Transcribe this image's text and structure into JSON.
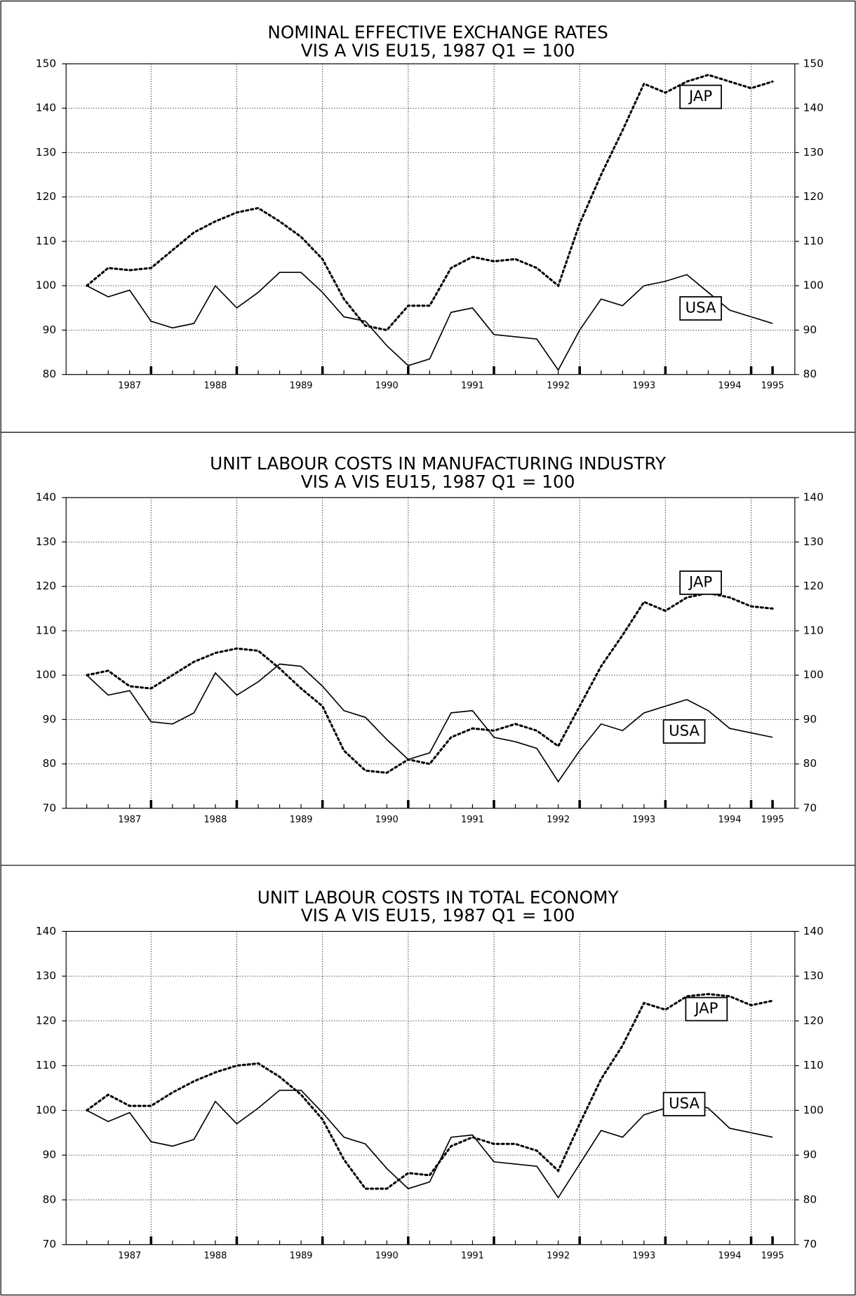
{
  "chart_data": [
    {
      "type": "line",
      "title": "NOMINAL EFFECTIVE EXCHANGE RATES",
      "subtitle": "VIS A VIS EU15,  1987 Q1 = 100",
      "categories": [
        null,
        null,
        "1987",
        null,
        null,
        null,
        "1988",
        null,
        null,
        null,
        "1989",
        null,
        null,
        null,
        "1990",
        null,
        null,
        null,
        "1991",
        null,
        null,
        null,
        "1992",
        null,
        null,
        null,
        "1993",
        null,
        null,
        null,
        "1994",
        null,
        "1995"
      ],
      "series": [
        {
          "name": "JAP",
          "color": "#000",
          "dash": "dotted",
          "values": [
            100,
            104,
            103.5,
            104,
            108,
            112,
            114.5,
            116.5,
            117.5,
            114.5,
            111,
            106,
            97,
            91,
            90,
            95.5,
            95.5,
            104,
            106.5,
            105.5,
            106,
            104,
            100,
            114,
            125,
            135,
            145.5,
            143.5,
            146,
            147.5,
            146,
            144.5,
            146
          ]
        },
        {
          "name": "USA",
          "color": "#000",
          "dash": "solid",
          "values": [
            100,
            97.5,
            99,
            92,
            90.5,
            91.5,
            100,
            95,
            98.5,
            103,
            103,
            98.5,
            93,
            92,
            86.5,
            82,
            83.5,
            94,
            95,
            89,
            88.5,
            88,
            81,
            90,
            97,
            95.5,
            100,
            101,
            102.5,
            98.5,
            94.5,
            93,
            91.5
          ]
        }
      ],
      "ylim": [
        80,
        150
      ],
      "yticks": [
        80,
        90,
        100,
        110,
        120,
        130,
        140,
        150
      ],
      "y2lim": [
        80,
        150
      ],
      "y2ticks": [
        80,
        90,
        100,
        110,
        120,
        130,
        140,
        150
      ],
      "grid": true
    },
    {
      "type": "line",
      "title": "UNIT LABOUR COSTS IN MANUFACTURING INDUSTRY",
      "subtitle": "VIS A VIS EU15,  1987 Q1 = 100",
      "categories": [
        null,
        null,
        "1987",
        null,
        null,
        null,
        "1988",
        null,
        null,
        null,
        "1989",
        null,
        null,
        null,
        "1990",
        null,
        null,
        null,
        "1991",
        null,
        null,
        null,
        "1992",
        null,
        null,
        null,
        "1993",
        null,
        null,
        null,
        "1994",
        null,
        "1995"
      ],
      "series": [
        {
          "name": "JAP",
          "color": "#000",
          "dash": "dotted",
          "values": [
            100,
            101,
            97.5,
            97,
            100,
            103,
            105,
            106,
            105.5,
            101.5,
            97,
            93,
            83,
            78.5,
            78,
            81,
            80,
            86,
            88,
            87.5,
            89,
            87.5,
            84,
            93,
            102,
            109,
            116.5,
            114.5,
            117.5,
            118.5,
            117.5,
            115.5,
            115
          ]
        },
        {
          "name": "USA",
          "color": "#000",
          "dash": "solid",
          "values": [
            100,
            95.5,
            96.5,
            89.5,
            89,
            91.5,
            100.5,
            95.5,
            98.5,
            102.5,
            102,
            97.5,
            92,
            90.5,
            85.5,
            81,
            82.5,
            91.5,
            92,
            86,
            85,
            83.5,
            76,
            83,
            89,
            87.5,
            91.5,
            93,
            94.5,
            92,
            88,
            87,
            86
          ]
        }
      ],
      "ylim": [
        70,
        140
      ],
      "yticks": [
        70,
        80,
        90,
        100,
        110,
        120,
        130,
        140
      ],
      "y2lim": [
        70,
        140
      ],
      "y2ticks": [
        70,
        80,
        90,
        100,
        110,
        120,
        130,
        140
      ],
      "grid": true
    },
    {
      "type": "line",
      "title": "UNIT LABOUR COSTS IN TOTAL ECONOMY",
      "subtitle": "VIS A VIS EU15,  1987 Q1 = 100",
      "categories": [
        null,
        null,
        "1987",
        null,
        null,
        null,
        "1988",
        null,
        null,
        null,
        "1989",
        null,
        null,
        null,
        "1990",
        null,
        null,
        null,
        "1991",
        null,
        null,
        null,
        "1992",
        null,
        null,
        null,
        "1993",
        null,
        null,
        null,
        "1994",
        null,
        "1995"
      ],
      "series": [
        {
          "name": "JAP",
          "color": "#000",
          "dash": "dotted",
          "values": [
            100,
            103.5,
            101,
            101,
            104,
            106.5,
            108.5,
            110,
            110.5,
            107.5,
            103.5,
            98,
            89,
            82.5,
            82.5,
            86,
            85.5,
            92,
            94,
            92.5,
            92.5,
            91,
            86.5,
            97,
            107,
            114.5,
            124,
            122.5,
            125.5,
            126,
            125.5,
            123.5,
            124.5
          ]
        },
        {
          "name": "USA",
          "color": "#000",
          "dash": "solid",
          "values": [
            100,
            97.5,
            99.5,
            93,
            92,
            93.5,
            102,
            97,
            100.5,
            104.5,
            104.5,
            99.5,
            94,
            92.5,
            87,
            82.5,
            84,
            94,
            94.5,
            88.5,
            88,
            87.5,
            80.5,
            88,
            95.5,
            94,
            99,
            100.5,
            102,
            100.5,
            96,
            95,
            94
          ]
        }
      ],
      "ylim": [
        70,
        140
      ],
      "yticks": [
        70,
        80,
        90,
        100,
        110,
        120,
        130,
        140
      ],
      "y2lim": [
        70,
        140
      ],
      "y2ticks": [
        70,
        80,
        90,
        100,
        110,
        120,
        130,
        140
      ],
      "grid": true
    }
  ]
}
